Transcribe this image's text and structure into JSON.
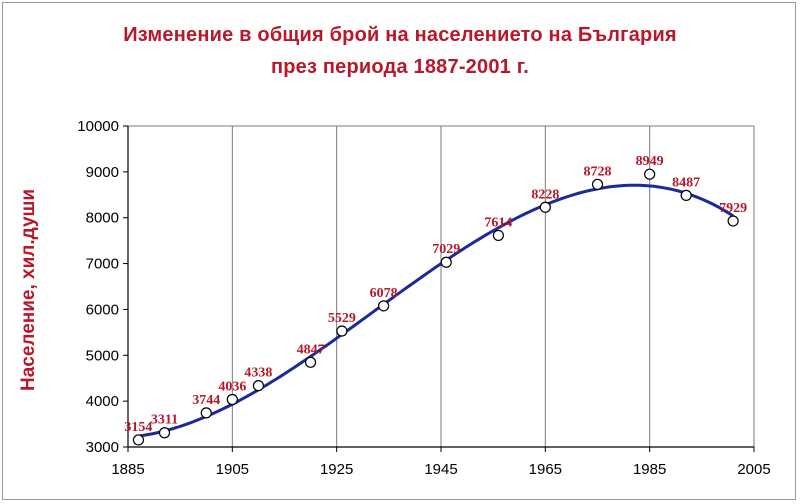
{
  "chart_data": {
    "type": "scatter",
    "title": "Изменение в общия брой на населението на България",
    "subtitle": "през периода 1887-2001 г.",
    "xlabel": "",
    "ylabel": "Население, хил.души",
    "xlim": [
      1885,
      2005
    ],
    "ylim": [
      3000,
      10000
    ],
    "xticks": [
      "1885",
      "1905",
      "1925",
      "1945",
      "1965",
      "1985",
      "2005"
    ],
    "yticks": [
      "3000",
      "4000",
      "5000",
      "6000",
      "7000",
      "8000",
      "9000",
      "10000"
    ],
    "grid": "vertical",
    "series": [
      {
        "x": [
          1887,
          1892,
          1900,
          1905,
          1910,
          1920,
          1926,
          1934,
          1946,
          1956,
          1965,
          1975,
          1985,
          1992,
          2001
        ],
        "y": [
          3154,
          3311,
          3744,
          4036,
          4338,
          4847,
          5529,
          6078,
          7029,
          7614,
          8228,
          8728,
          8949,
          8487,
          7929
        ],
        "labels": [
          "3154",
          "3311",
          "3744",
          "4036",
          "4338",
          "4847",
          "5529",
          "6078",
          "7029",
          "7614",
          "8228",
          "8728",
          "8949",
          "8487",
          "7929"
        ],
        "marker": "open-circle"
      }
    ],
    "trendline": {
      "color": "#1a2a9a"
    },
    "colors": {
      "title": "#b8182a",
      "labels": "#b8182a",
      "trend": "#1a2a9a",
      "markers": "#000000"
    }
  }
}
